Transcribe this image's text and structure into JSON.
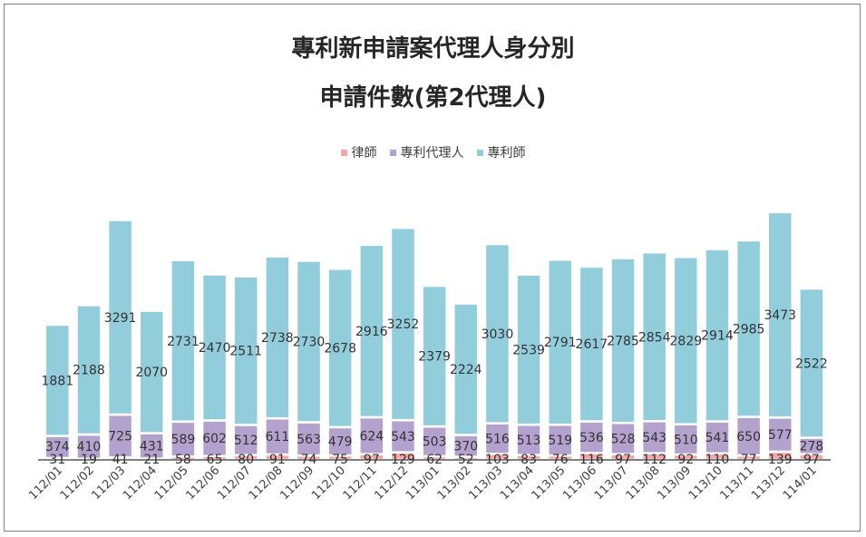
{
  "chart_data": {
    "type": "bar",
    "stacked": true,
    "title": "專利新申請案代理人身分別",
    "subtitle": "申請件數(第2代理人)",
    "categories": [
      "112/01",
      "112/02",
      "112/03",
      "112/04",
      "112/05",
      "112/06",
      "112/07",
      "112/08",
      "112/09",
      "112/10",
      "112/11",
      "112/12",
      "113/01",
      "113/02",
      "113/03",
      "113/04",
      "113/05",
      "113/06",
      "113/07",
      "113/08",
      "113/09",
      "113/10",
      "113/11",
      "113/12",
      "114/01"
    ],
    "series": [
      {
        "name": "律師",
        "color": "#f4a6a6",
        "values": [
          31,
          19,
          41,
          21,
          58,
          65,
          80,
          91,
          74,
          75,
          97,
          129,
          62,
          52,
          103,
          83,
          76,
          116,
          97,
          112,
          92,
          110,
          77,
          139,
          97
        ]
      },
      {
        "name": "專利代理人",
        "color": "#b4a2ce",
        "values": [
          374,
          410,
          725,
          431,
          589,
          602,
          512,
          611,
          563,
          479,
          624,
          543,
          503,
          370,
          516,
          513,
          519,
          536,
          528,
          543,
          510,
          541,
          650,
          577,
          278
        ]
      },
      {
        "name": "專利師",
        "color": "#92cddc",
        "values": [
          1881,
          2188,
          3291,
          2070,
          2731,
          2470,
          2511,
          2738,
          2730,
          2678,
          2916,
          3252,
          2379,
          2224,
          3030,
          2539,
          2791,
          2617,
          2785,
          2854,
          2829,
          2914,
          2985,
          3473,
          2522
        ]
      }
    ],
    "legend": "top",
    "grid": false
  }
}
